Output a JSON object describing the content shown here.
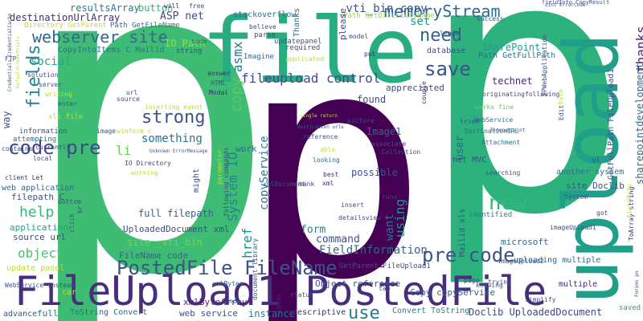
{
  "words": [
    {
      "text": "p",
      "color": "#3fbc73"
    },
    {
      "text": "p",
      "color": "#440154"
    },
    {
      "text": "p",
      "color": "#2db27d"
    },
    {
      "text": "file",
      "color": "#27ad81"
    },
    {
      "text": "upload",
      "color": "#1f9e89"
    },
    {
      "text": "FileUpload1 PostedFile",
      "color": "#472d7b"
    },
    {
      "text": "PostedFile FileName",
      "color": "#3b528b"
    },
    {
      "text": "webserver site",
      "color": "#31688e"
    },
    {
      "text": "memoryStream",
      "color": "#31688e"
    },
    {
      "text": "fileupload control",
      "color": "#3e4989"
    },
    {
      "text": "code pre",
      "color": "#3e4989"
    },
    {
      "text": "pre code",
      "color": "#3b528b"
    },
    {
      "text": "strong",
      "color": "#3b528b"
    },
    {
      "text": "need",
      "color": "#355f8d"
    },
    {
      "text": "save",
      "color": "#3b528b"
    },
    {
      "text": "new",
      "color": "#35b779"
    },
    {
      "text": "fields",
      "color": "#26828e"
    },
    {
      "text": "help",
      "color": "#35b779"
    },
    {
      "text": "use",
      "color": "#287c8e"
    },
    {
      "text": "using",
      "color": "#1f968b"
    },
    {
      "text": "System IO",
      "color": "#26828e"
    },
    {
      "text": "href",
      "color": "#21918c"
    },
    {
      "text": "copy",
      "color": "#5ec962"
    },
    {
      "text": "asmx",
      "color": "#2a788e"
    },
    {
      "text": "copyService",
      "color": "#287c8e"
    },
    {
      "text": "object",
      "color": "#4ac16d"
    },
    {
      "text": "li",
      "color": "#6ece58"
    },
    {
      "text": "something",
      "color": "#2c728e"
    },
    {
      "text": "full filepath",
      "color": "#33638d"
    },
    {
      "text": "Image2",
      "color": "#440154"
    },
    {
      "text": "command",
      "color": "#3b528b"
    },
    {
      "text": "FieldInformation",
      "color": "#31688e"
    },
    {
      "text": "Doclib UploadedDocument",
      "color": "#3e4989"
    },
    {
      "text": "site _vti_bin",
      "color": "#7ad151"
    },
    {
      "text": "_vti_bin copy",
      "color": "#3b528b"
    },
    {
      "text": "ASP net",
      "color": "#3e4989"
    },
    {
      "text": "button",
      "color": "#35b779"
    },
    {
      "text": "CopyIntoItems C Mailid",
      "color": "#2c728e"
    },
    {
      "text": "IO Path",
      "color": "#a0da39"
    },
    {
      "text": "resultsArray",
      "color": "#2a788e"
    },
    {
      "text": "destinationUrlArray",
      "color": "#482878"
    },
    {
      "text": "social",
      "color": "#22a884"
    },
    {
      "text": "want",
      "color": "#2c728e"
    },
    {
      "text": "application",
      "color": "#1fa187"
    },
    {
      "text": "source url",
      "color": "#3e4989"
    },
    {
      "text": "FileName code",
      "color": "#33638d"
    },
    {
      "text": "UploadedDocument xml",
      "color": "#3e4989"
    },
    {
      "text": "form",
      "color": "#277f8e"
    },
    {
      "text": "Object reference",
      "color": "#3b528b"
    },
    {
      "text": "Copy copyService",
      "color": "#33638d"
    },
    {
      "text": "microsoft",
      "color": "#31688e"
    },
    {
      "text": "stackoverflow",
      "color": "#2c728e"
    },
    {
      "text": "set",
      "color": "#1f968b"
    },
    {
      "text": "appreciated",
      "color": "#3e4989"
    },
    {
      "text": "found",
      "color": "#3e4989"
    },
    {
      "text": "Image1",
      "color": "#31688e"
    },
    {
      "text": "possible",
      "color": "#3b528b"
    },
    {
      "text": "filepath C",
      "color": "#3b528b"
    },
    {
      "text": "xmlByteArray",
      "color": "#482878"
    },
    {
      "text": "web service",
      "color": "#3b528b"
    },
    {
      "text": "instance",
      "color": "#2a788e"
    },
    {
      "text": "Convert ToString",
      "color": "#26828e"
    },
    {
      "text": "user",
      "color": "#33638d"
    },
    {
      "text": "work",
      "color": "#31688e"
    },
    {
      "text": "Path GetDirectoryName",
      "color": "#a0da39"
    },
    {
      "text": "SharePoint",
      "color": "#1f9e89"
    },
    {
      "text": "Path GetFullPath",
      "color": "#2c728e"
    },
    {
      "text": "technet",
      "color": "#482878"
    },
    {
      "text": "database",
      "color": "#3b528b"
    },
    {
      "text": "multiple",
      "color": "#482878"
    },
    {
      "text": "uploading multiple",
      "color": "#31688e"
    },
    {
      "text": "identified",
      "color": "#26828e"
    },
    {
      "text": "site Doclib",
      "color": "#3b528b"
    },
    {
      "text": "another system",
      "color": "#2c728e"
    },
    {
      "text": "sharepointdevelopment",
      "color": "#2c728e"
    },
    {
      "text": "GetParent FileUpload1",
      "color": "#3b528b"
    },
    {
      "text": "GetFullPath FileUpload1",
      "color": "#3b528b"
    },
    {
      "text": "Thanks",
      "color": "#2c728e"
    },
    {
      "text": "thanks",
      "color": "#482878"
    },
    {
      "text": "please",
      "color": "#3e4989"
    },
    {
      "text": "Mailid xls",
      "color": "#3b528b"
    },
    {
      "text": "web application",
      "color": "#31688e"
    },
    {
      "text": "update panel",
      "color": "#bddf26"
    },
    {
      "text": "advance",
      "color": "#3b528b"
    },
    {
      "text": "full",
      "color": "#2c728e"
    },
    {
      "text": "ToString Convert",
      "color": "#31688e"
    },
    {
      "text": "descriptive",
      "color": "#482878"
    },
    {
      "text": "saved",
      "color": "#1f9e89"
    },
    {
      "text": "might",
      "color": "#3e4989"
    },
    {
      "text": "Imagine",
      "color": "#31688e"
    },
    {
      "text": "parse",
      "color": "#3e4989"
    },
    {
      "text": "updatepanel",
      "color": "#3b528b"
    },
    {
      "text": "required",
      "color": "#3b528b"
    },
    {
      "text": "string",
      "color": "#3e4989"
    },
    {
      "text": "model",
      "color": "#3b528b"
    },
    {
      "text": "leads",
      "color": "#3e4989"
    },
    {
      "text": "success",
      "color": "#3b528b"
    },
    {
      "text": "fieldInfo CopyResult",
      "color": "#3b528b"
    },
    {
      "text": "ToArray string",
      "color": "#482878"
    },
    {
      "text": "imageUpload1",
      "color": "#3e4989"
    },
    {
      "text": "imageUpload2",
      "color": "#3b528b"
    },
    {
      "text": "works fine",
      "color": "#5ec962"
    },
    {
      "text": "Attachment",
      "color": "#2c728e"
    },
    {
      "text": "DestinationURL",
      "color": "#2c728e"
    },
    {
      "text": "WebService",
      "color": "#2c728e"
    },
    {
      "text": "net MVC",
      "color": "#3e4989"
    },
    {
      "text": "reference",
      "color": "#3b528b"
    },
    {
      "text": "associate",
      "color": "#3b528b"
    },
    {
      "text": "Collection",
      "color": "#3b528b"
    },
    {
      "text": "picture",
      "color": "#3b528b"
    },
    {
      "text": "looking",
      "color": "#31688e"
    },
    {
      "text": "best",
      "color": "#482878"
    },
    {
      "text": "xml",
      "color": "#482878"
    },
    {
      "text": "runs",
      "color": "#3e4989"
    },
    {
      "text": "detailsview",
      "color": "#3e4989"
    },
    {
      "text": "tab",
      "color": "#3e4989"
    },
    {
      "text": "status",
      "color": "#3b528b"
    },
    {
      "text": "ideas",
      "color": "#482878"
    },
    {
      "text": "page",
      "color": "#3e4989"
    },
    {
      "text": "knowing",
      "color": "#31688e"
    },
    {
      "text": "simplify",
      "color": "#3e4989"
    },
    {
      "text": "trying",
      "color": "#3e4989"
    },
    {
      "text": "System",
      "color": "#3b528b"
    },
    {
      "text": "searching",
      "color": "#3b528b"
    },
    {
      "text": "following",
      "color": "#3e4989"
    },
    {
      "text": "originating",
      "color": "#3e4989"
    },
    {
      "text": "tried",
      "color": "#3b528b"
    },
    {
      "text": "free",
      "color": "#3b528b"
    },
    {
      "text": "will",
      "color": "#482878"
    },
    {
      "text": "code",
      "color": "#3e4989"
    },
    {
      "text": "Directory GetParent",
      "color": "#bddf26"
    },
    {
      "text": "Path GetFileName",
      "color": "#2c728e"
    },
    {
      "text": "answer",
      "color": "#482878"
    },
    {
      "text": "HTML",
      "color": "#3b528b"
    },
    {
      "text": "Modal",
      "color": "#482878"
    },
    {
      "text": "source",
      "color": "#3e4989"
    },
    {
      "text": "url",
      "color": "#3b528b"
    },
    {
      "text": "inserting event",
      "color": "#bddf26"
    },
    {
      "text": "winform c",
      "color": "#bddf26"
    },
    {
      "text": "IO Directory",
      "color": "#3e4989"
    },
    {
      "text": "working",
      "color": "#bddf26"
    },
    {
      "text": "following commands",
      "color": "#3e4989"
    },
    {
      "text": "xmlDocument",
      "color": "#3b528b"
    },
    {
      "text": "document library",
      "color": "#3b528b"
    },
    {
      "text": "xmlBytes",
      "color": "#2c728e"
    },
    {
      "text": "now",
      "color": "#31688e"
    },
    {
      "text": "car",
      "color": "#bddf26"
    },
    {
      "text": "WebService instead",
      "color": "#3b528b"
    },
    {
      "text": "contains",
      "color": "#3b528b"
    },
    {
      "text": "currently",
      "color": "#3e4989"
    },
    {
      "text": "information",
      "color": "#3b528b"
    },
    {
      "text": "attempting",
      "color": "#2c728e"
    },
    {
      "text": "way",
      "color": "#3b528b"
    },
    {
      "text": "local",
      "color": "#3e4989"
    },
    {
      "text": "client Let",
      "color": "#482878"
    },
    {
      "text": "server",
      "color": "#3b528b"
    },
    {
      "text": "writing",
      "color": "#bddf26"
    },
    {
      "text": "enter",
      "color": "#3b528b"
    },
    {
      "text": "solution",
      "color": "#3e4989"
    },
    {
      "text": "FTP",
      "color": "#3b528b"
    },
    {
      "text": "xls file",
      "color": "#bddf26"
    },
    {
      "text": "put",
      "color": "#482878"
    },
    {
      "text": "couple",
      "color": "#482878"
    },
    {
      "text": "SPWebApplication",
      "color": "#3b528b"
    },
    {
      "text": "byte",
      "color": "#bddf26"
    },
    {
      "text": "Edit",
      "color": "#3b528b"
    },
    {
      "text": "got",
      "color": "#3e4989"
    },
    {
      "text": "ul",
      "color": "#3b528b"
    },
    {
      "text": "fieldInfo",
      "color": "#bddf26"
    },
    {
      "text": "able",
      "color": "#bddf26"
    },
    {
      "text": "hank",
      "color": "#3e4989"
    },
    {
      "text": "parameter",
      "color": "#bddf26"
    },
    {
      "text": "bottom",
      "color": "#3b528b"
    },
    {
      "text": "click",
      "color": "#3b528b"
    },
    {
      "text": "br",
      "color": "#3e4989"
    },
    {
      "text": "image",
      "color": "#3b528b"
    },
    {
      "text": "insert",
      "color": "#3b528b"
    },
    {
      "text": "believe",
      "color": "#3b528b"
    },
    {
      "text": "applicated",
      "color": "#bddf26"
    },
    {
      "text": "Credentials CredentialCache",
      "color": "#3b528b"
    },
    {
      "text": "DefaultCredentials",
      "color": "#bddf26"
    },
    {
      "text": "Timeout uint",
      "color": "#3b528b"
    },
    {
      "text": "uint ErrorCode",
      "color": "#3b528b"
    },
    {
      "text": "single return",
      "color": "#bddf26"
    },
    {
      "text": "destination urls",
      "color": "#3b528b"
    },
    {
      "text": "Unknown ErrorMessage",
      "color": "#3b528b"
    },
    {
      "text": "Forums pn",
      "color": "#3b528b"
    }
  ]
}
